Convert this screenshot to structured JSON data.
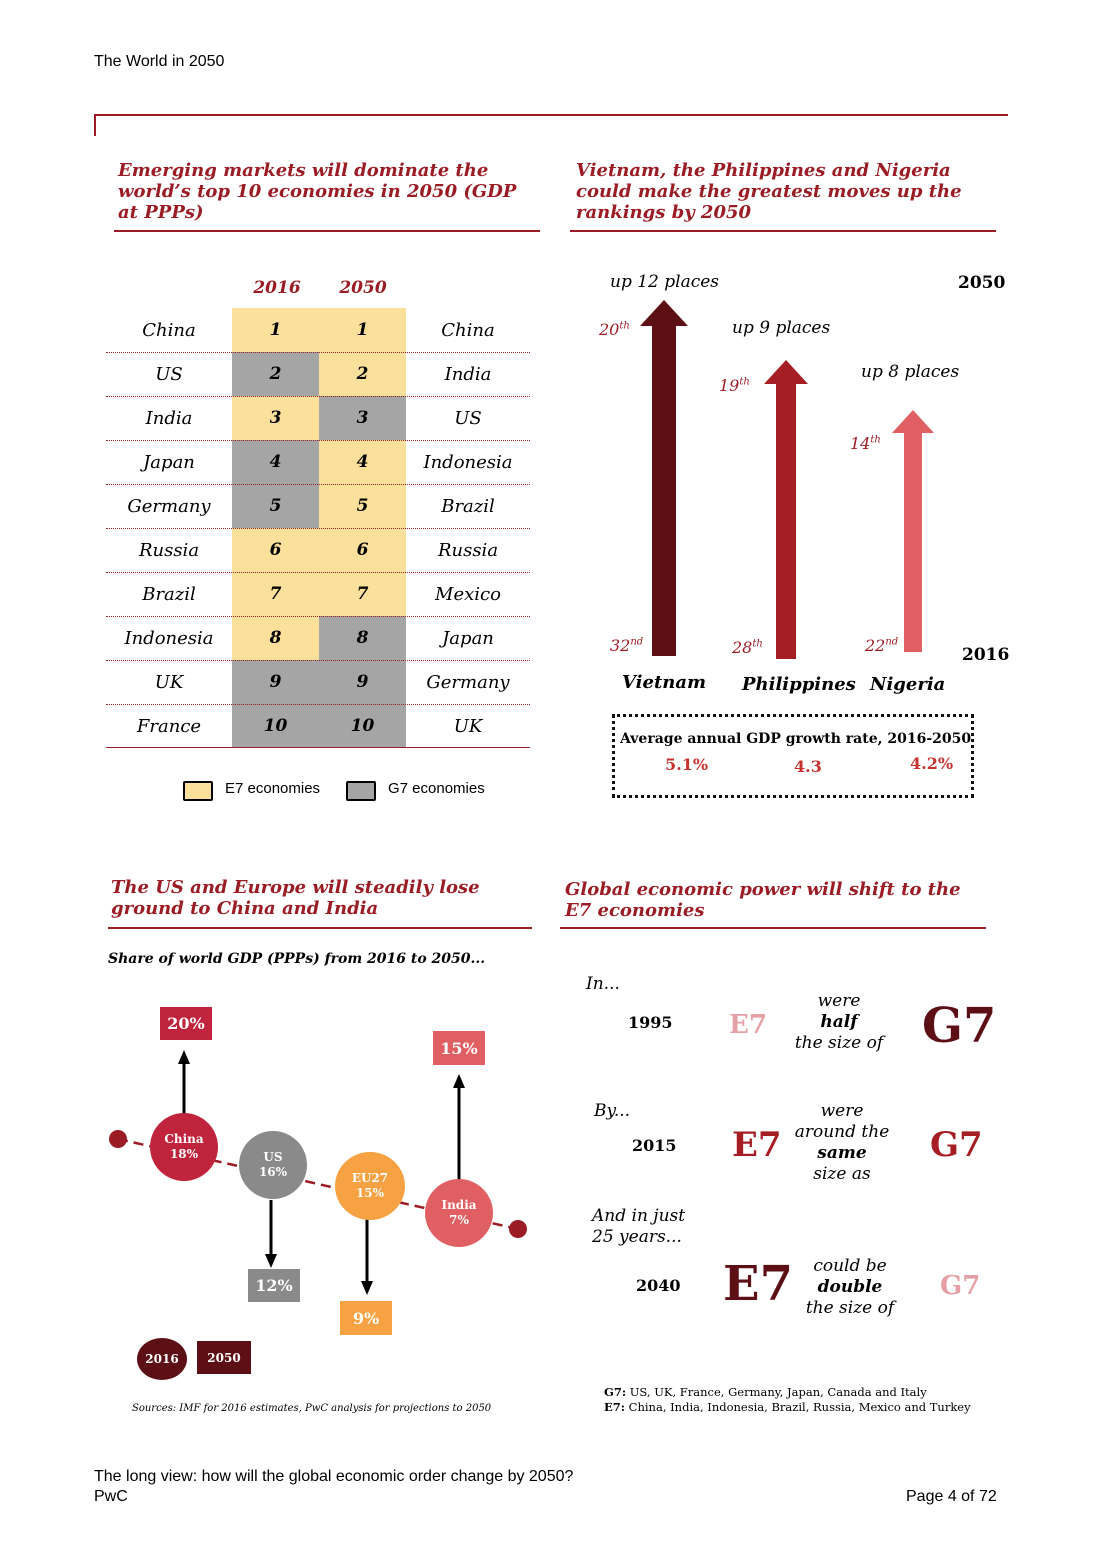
{
  "header": {
    "title": "The World in 2050"
  },
  "table_section": {
    "heading": "Emerging markets will dominate the world’s top 10 economies in 2050 (GDP at PPPs)",
    "col_2016": "2016",
    "col_2050": "2050",
    "rows": [
      {
        "left": "China",
        "r1": "1",
        "r2": "1",
        "right": "China",
        "c1": "e7",
        "c2": "e7"
      },
      {
        "left": "US",
        "r1": "2",
        "r2": "2",
        "right": "India",
        "c1": "g7",
        "c2": "e7"
      },
      {
        "left": "India",
        "r1": "3",
        "r2": "3",
        "right": "US",
        "c1": "e7",
        "c2": "g7"
      },
      {
        "left": "Japan",
        "r1": "4",
        "r2": "4",
        "right": "Indonesia",
        "c1": "g7",
        "c2": "e7"
      },
      {
        "left": "Germany",
        "r1": "5",
        "r2": "5",
        "right": "Brazil",
        "c1": "g7",
        "c2": "e7"
      },
      {
        "left": "Russia",
        "r1": "6",
        "r2": "6",
        "right": "Russia",
        "c1": "e7",
        "c2": "e7"
      },
      {
        "left": "Brazil",
        "r1": "7",
        "r2": "7",
        "right": "Mexico",
        "c1": "e7",
        "c2": "e7"
      },
      {
        "left": "Indonesia",
        "r1": "8",
        "r2": "8",
        "right": "Japan",
        "c1": "e7",
        "c2": "g7"
      },
      {
        "left": "UK",
        "r1": "9",
        "r2": "9",
        "right": "Germany",
        "c1": "g7",
        "c2": "g7"
      },
      {
        "left": "France",
        "r1": "10",
        "r2": "10",
        "right": "UK",
        "c1": "g7",
        "c2": "g7"
      }
    ],
    "legend": {
      "e7": "E7 economies",
      "g7": "G7 economies"
    },
    "colors": {
      "e7": "#fbe09b",
      "g7": "#a5a5a5"
    }
  },
  "moves_section": {
    "heading": "Vietnam, the Philippines and Nigeria could make the greatest moves up the rankings by 2050",
    "label_2050": "2050",
    "label_2016": "2016",
    "countries": [
      {
        "name": "Vietnam",
        "up": "up 12 places",
        "from_num": "32",
        "from_sup": "nd",
        "to_num": "20",
        "to_sup": "th",
        "growth": "5.1%",
        "color": "#5c1016"
      },
      {
        "name": "Philippines",
        "up": "up 9 places",
        "from_num": "28",
        "from_sup": "th",
        "to_num": "19",
        "to_sup": "th",
        "growth": "4.3",
        "color": "#a41e23"
      },
      {
        "name": "Nigeria",
        "up": "up 8 places",
        "from_num": "22",
        "from_sup": "nd",
        "to_num": "14",
        "to_sup": "th",
        "growth": "4.2%",
        "color": "#e05f62"
      }
    ],
    "growth_label": "Average annual GDP growth rate, 2016-2050"
  },
  "share_section": {
    "heading": "The US and Europe will steadily lose ground to China and India",
    "subtitle": "Share of world GDP (PPPs) from 2016 to 2050...",
    "items": [
      {
        "name": "China",
        "share_2016": "18%",
        "share_2050": "20%",
        "color": "#c0243d"
      },
      {
        "name": "US",
        "share_2016": "16%",
        "share_2050": "12%",
        "color": "#8a8a8a"
      },
      {
        "name": "EU27",
        "share_2016": "15%",
        "share_2050": "9%",
        "color": "#f6a142"
      },
      {
        "name": "India",
        "share_2016": "7%",
        "share_2050": "15%",
        "color": "#e05f62"
      }
    ],
    "legend_2016": "2016",
    "legend_2050": "2050",
    "sources": "Sources: IMF for 2016 estimates, PwC analysis for projections to 2050"
  },
  "power_section": {
    "heading": "Global economic power will shift to the E7 economies",
    "rows": [
      {
        "intro": "In...",
        "year": "1995",
        "l1": "were",
        "l2": "half",
        "l3": "the size of",
        "l4": ""
      },
      {
        "intro": "By...",
        "year": "2015",
        "l1": "were",
        "l2": "around the",
        "l3": "same",
        "l4": "size as"
      },
      {
        "intro1": "And in just",
        "intro2": "25 years...",
        "year": "2040",
        "l1": "could be",
        "l2": "double",
        "l3": "the size of",
        "l4": ""
      }
    ],
    "e7_label": "E7",
    "g7_label": "G7",
    "g7_def_key": "G7:",
    "g7_def": "US, UK, France, Germany, Japan, Canada and Italy",
    "e7_def_key": "E7:",
    "e7_def": "China, India, Indonesia, Brazil, Russia, Mexico and Turkey"
  },
  "footer": {
    "line1": "The long view: how will the global economic order change by 2050?",
    "line2": "PwC",
    "page": "Page 4 of 72"
  }
}
